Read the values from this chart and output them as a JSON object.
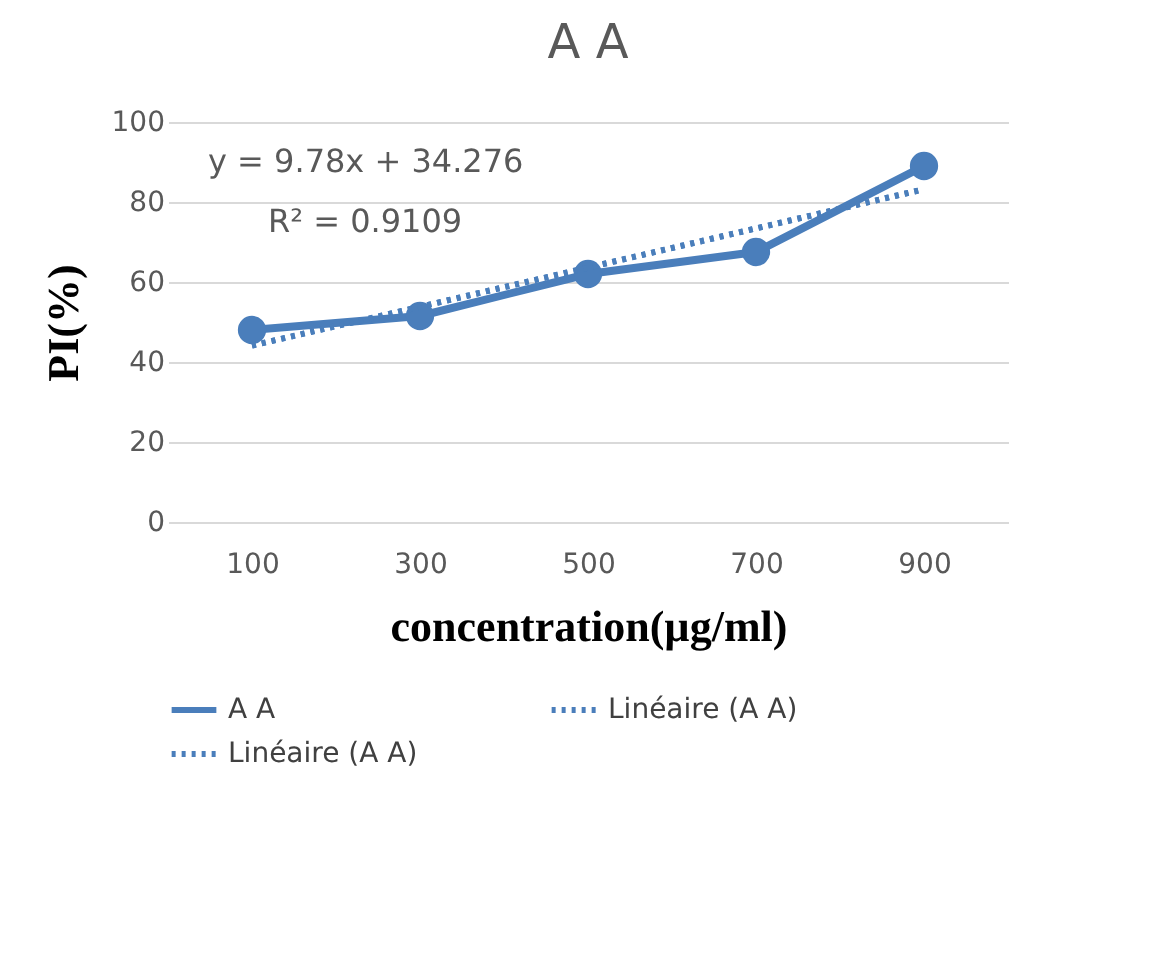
{
  "chart_data": {
    "type": "line",
    "title": "A A",
    "xlabel": "concentration(µg/ml)",
    "ylabel": "PI(%)",
    "categories": [
      "100",
      "300",
      "500",
      "700",
      "900"
    ],
    "series": [
      {
        "name": "A A",
        "color": "#4a7ebb",
        "values": [
          48,
          51.5,
          62,
          67.5,
          89
        ],
        "marker": "circle",
        "line_style": "solid"
      },
      {
        "name": "Linéaire (A A)",
        "color": "#4a7ebb",
        "values": [
          44.1,
          53.8,
          63.6,
          73.4,
          83.2
        ],
        "marker": "none",
        "line_style": "dotted"
      },
      {
        "name": "Linéaire (A A)",
        "color": "#4a7ebb",
        "values": [
          44.1,
          53.8,
          63.6,
          73.4,
          83.2
        ],
        "marker": "none",
        "line_style": "dotted"
      }
    ],
    "ylim": [
      0,
      100
    ],
    "yticks": [
      0,
      20,
      40,
      60,
      80,
      100
    ],
    "grid": "y",
    "legend": "bottom",
    "annotations": [
      "y = 9.78x + 34.276",
      "R² = 0.9109"
    ]
  }
}
